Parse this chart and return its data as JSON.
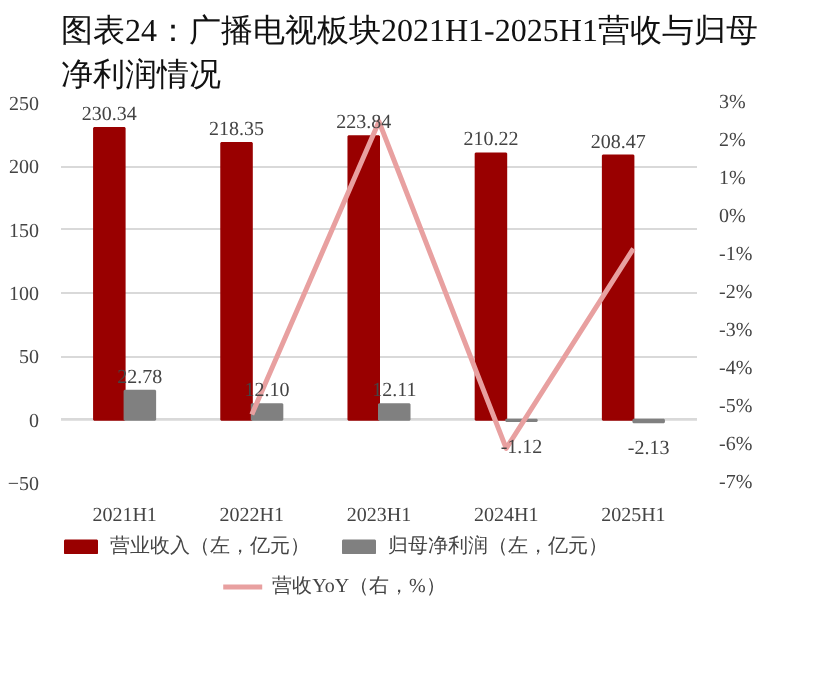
{
  "chart_data": {
    "type": "bar",
    "title": "图表24：广播电视板块2021H1-2025H1营收与归母净利润情况",
    "categories": [
      "2021H1",
      "2022H1",
      "2023H1",
      "2024H1",
      "2025H1"
    ],
    "series": [
      {
        "name": "营业收入（左，亿元）",
        "color": "#990000",
        "values": [
          230.34,
          218.35,
          223.84,
          210.22,
          208.47
        ],
        "value_labels": [
          "230.34",
          "218.35",
          "223.84",
          "210.22",
          "208.47"
        ]
      },
      {
        "name": "归母净利润（左，亿元）",
        "color": "#808080",
        "values": [
          22.78,
          12.1,
          12.11,
          -1.12,
          -2.13
        ],
        "value_labels": [
          "22.78",
          "12.10",
          "12.11",
          "-1.12",
          "-2.13"
        ]
      },
      {
        "name": "营收YoY（右，%）",
        "type": "line",
        "axis": "y2",
        "color": "#e8a0a0",
        "values": [
          null,
          -5.2,
          2.51,
          -6.09,
          -0.83
        ]
      }
    ],
    "ylim": [
      -50,
      250
    ],
    "yticks": [
      -50,
      0,
      50,
      100,
      150,
      200,
      250
    ],
    "y2lim": [
      -7,
      3
    ],
    "y2ticks": [
      {
        "value": -7,
        "label": "-7%"
      },
      {
        "value": -6,
        "label": "-6%"
      },
      {
        "value": -5,
        "label": "-5%"
      },
      {
        "value": -4,
        "label": "-4%"
      },
      {
        "value": -3,
        "label": "-3%"
      },
      {
        "value": -2,
        "label": "-2%"
      },
      {
        "value": -1,
        "label": "-1%"
      },
      {
        "value": 0,
        "label": "0%"
      },
      {
        "value": 1,
        "label": "1%"
      },
      {
        "value": 2,
        "label": "2%"
      },
      {
        "value": 3,
        "label": "3%"
      }
    ],
    "grid": "y",
    "legend": "bottom"
  }
}
